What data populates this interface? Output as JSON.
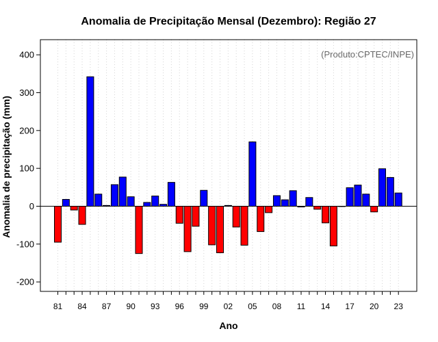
{
  "chart_data": {
    "type": "bar",
    "title": "Anomalia de Precipitação Mensal (Dezembro): Região 27",
    "xlabel": "Ano",
    "ylabel": "Anomalia de precipitação (mm)",
    "annotation": "(Produto:CPTEC/INPE)",
    "ylim": [
      -225,
      440
    ],
    "yticks": [
      -200,
      -100,
      0,
      100,
      200,
      300,
      400
    ],
    "years": [
      1981,
      1982,
      1983,
      1984,
      1985,
      1986,
      1987,
      1988,
      1989,
      1990,
      1991,
      1992,
      1993,
      1994,
      1995,
      1996,
      1997,
      1998,
      1999,
      2000,
      2001,
      2002,
      2003,
      2004,
      2005,
      2006,
      2007,
      2008,
      2009,
      2010,
      2011,
      2012,
      2013,
      2014,
      2015,
      2016,
      2017,
      2018,
      2019,
      2020,
      2021,
      2022,
      2023
    ],
    "xtick_labels": [
      "81",
      "84",
      "87",
      "90",
      "93",
      "96",
      "99",
      "02",
      "05",
      "08",
      "11",
      "14",
      "17",
      "20",
      "23"
    ],
    "xtick_years": [
      1981,
      1984,
      1987,
      1990,
      1993,
      1996,
      1999,
      2002,
      2005,
      2008,
      2011,
      2014,
      2017,
      2020,
      2023
    ],
    "values": [
      -95,
      18,
      -10,
      -48,
      342,
      32,
      2,
      57,
      77,
      25,
      -125,
      10,
      27,
      5,
      63,
      -45,
      -120,
      -53,
      42,
      -102,
      -123,
      2,
      -55,
      -103,
      170,
      -67,
      -17,
      28,
      17,
      41,
      -2,
      23,
      -8,
      -44,
      -105,
      0,
      49,
      56,
      32,
      -15,
      99,
      76,
      35
    ],
    "colors": {
      "positive": "#0000ff",
      "negative": "#ff0000",
      "grid": "#d3d3d3"
    }
  }
}
